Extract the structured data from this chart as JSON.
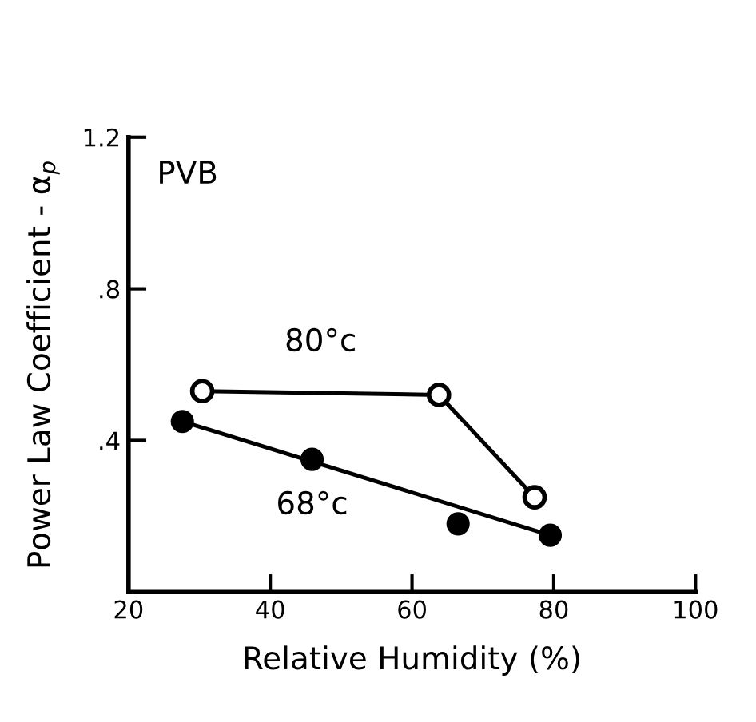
{
  "chart_data": {
    "type": "line",
    "xlabel": "Relative Humidity (%)",
    "ylabel": "Power Law Coefficient - α$_{p}$",
    "xlim": [
      20,
      100
    ],
    "xticks": [
      20,
      40,
      60,
      80,
      100
    ],
    "ylim": [
      0,
      1.2
    ],
    "yticks": [
      {
        "value": 0.4,
        "label": ".4"
      },
      {
        "value": 0.8,
        "label": ".8"
      },
      {
        "value": 1.2,
        "label": "1.2"
      }
    ],
    "grid": false,
    "legend": false,
    "annotations": [
      "PVB"
    ],
    "series": [
      {
        "name": "80°c",
        "color": "#000000",
        "marker": "circle",
        "x": [
          30.4,
          63.8,
          77.3
        ],
        "values": [
          0.53,
          0.52,
          0.25
        ]
      },
      {
        "name": "68°c",
        "type": "scatter",
        "color": "#000000",
        "marker": "circle",
        "x": [
          27.6,
          45.9,
          66.5,
          79.5
        ],
        "values": [
          0.45,
          0.35,
          0.18,
          0.15
        ]
      },
      {
        "type": "line",
        "color": "#000000",
        "marker": "none",
        "x": [
          27.6,
          79.5
        ],
        "values": [
          0.45,
          0.15
        ]
      }
    ]
  }
}
